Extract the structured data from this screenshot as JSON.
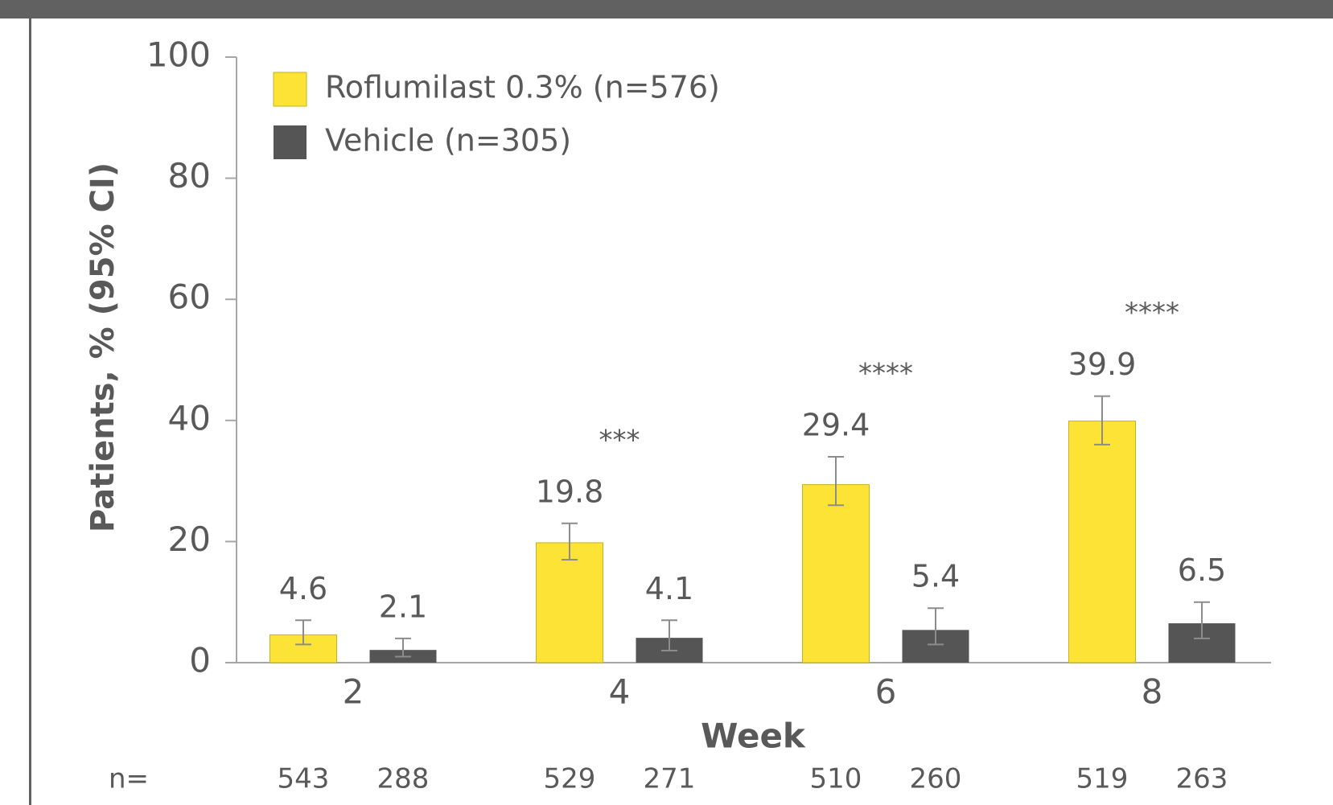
{
  "chart_data": {
    "type": "bar",
    "ylabel": "Patients, % (95% CI)",
    "xlabel": "Week",
    "categories": [
      "2",
      "4",
      "6",
      "8"
    ],
    "series": [
      {
        "name": "Roflumilast 0.3% (n=576)",
        "color": "#fde336",
        "values": [
          4.6,
          19.8,
          29.4,
          39.9
        ],
        "ci": [
          [
            3,
            7
          ],
          [
            17,
            23
          ],
          [
            26,
            34
          ],
          [
            36,
            44
          ]
        ],
        "n_counts": [
          543,
          529,
          510,
          519
        ]
      },
      {
        "name": "Vehicle (n=305)",
        "color": "#555555",
        "values": [
          2.1,
          4.1,
          5.4,
          6.5
        ],
        "ci": [
          [
            1,
            4
          ],
          [
            2,
            7
          ],
          [
            3,
            9
          ],
          [
            4,
            10
          ]
        ],
        "n_counts": [
          288,
          271,
          260,
          263
        ]
      }
    ],
    "significance": [
      null,
      "***",
      "****",
      "****"
    ],
    "n_label": "n=",
    "ylim": [
      0,
      100
    ],
    "yticks": [
      0,
      20,
      40,
      60,
      80,
      100
    ],
    "grid": false,
    "legend": "upper left"
  }
}
